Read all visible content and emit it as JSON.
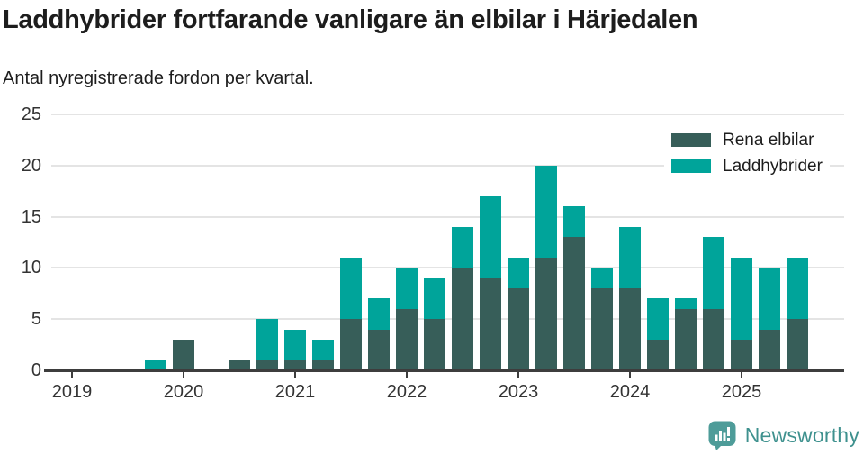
{
  "chart_data": {
    "type": "bar",
    "stacked": true,
    "title": "Laddhybrider fortfarande vanligare än elbilar i Härjedalen",
    "subtitle": "Antal nyregistrerade fordon per kvartal.",
    "categories": [
      "2019 Q1",
      "2019 Q2",
      "2019 Q3",
      "2019 Q4",
      "2020 Q1",
      "2020 Q2",
      "2020 Q3",
      "2020 Q4",
      "2021 Q1",
      "2021 Q2",
      "2021 Q3",
      "2021 Q4",
      "2022 Q1",
      "2022 Q2",
      "2022 Q3",
      "2022 Q4",
      "2023 Q1",
      "2023 Q2",
      "2023 Q3",
      "2023 Q4",
      "2024 Q1",
      "2024 Q2",
      "2024 Q3",
      "2024 Q4",
      "2025 Q1",
      "2025 Q2",
      "2025 Q3"
    ],
    "series": [
      {
        "name": "Rena elbilar",
        "color": "#375e59",
        "values": [
          0,
          0,
          0,
          0,
          3,
          0,
          1,
          1,
          1,
          1,
          5,
          4,
          6,
          5,
          10,
          9,
          8,
          11,
          13,
          8,
          8,
          3,
          6,
          6,
          3,
          4,
          5
        ]
      },
      {
        "name": "Laddhybrider",
        "color": "#00a49a",
        "values": [
          0,
          0,
          0,
          1,
          0,
          0,
          0,
          4,
          3,
          2,
          6,
          3,
          4,
          4,
          4,
          8,
          3,
          9,
          3,
          2,
          6,
          4,
          1,
          7,
          8,
          6,
          6
        ]
      }
    ],
    "ylim": [
      0,
      25
    ],
    "yticks": [
      0,
      5,
      10,
      15,
      20,
      25
    ],
    "xticks": [
      "2019",
      "2020",
      "2021",
      "2022",
      "2023",
      "2024",
      "2025"
    ],
    "grid": "horizontal",
    "legend_position": "top-right"
  },
  "colors": {
    "grid": "#e4e4e4",
    "axis": "#3d3d3d",
    "text": "#1d1d1d",
    "tick_label": "#333333",
    "brand": "#3e918e",
    "logo_fill": "#4e9c99"
  },
  "footer": {
    "brand": "Newsworthy"
  }
}
